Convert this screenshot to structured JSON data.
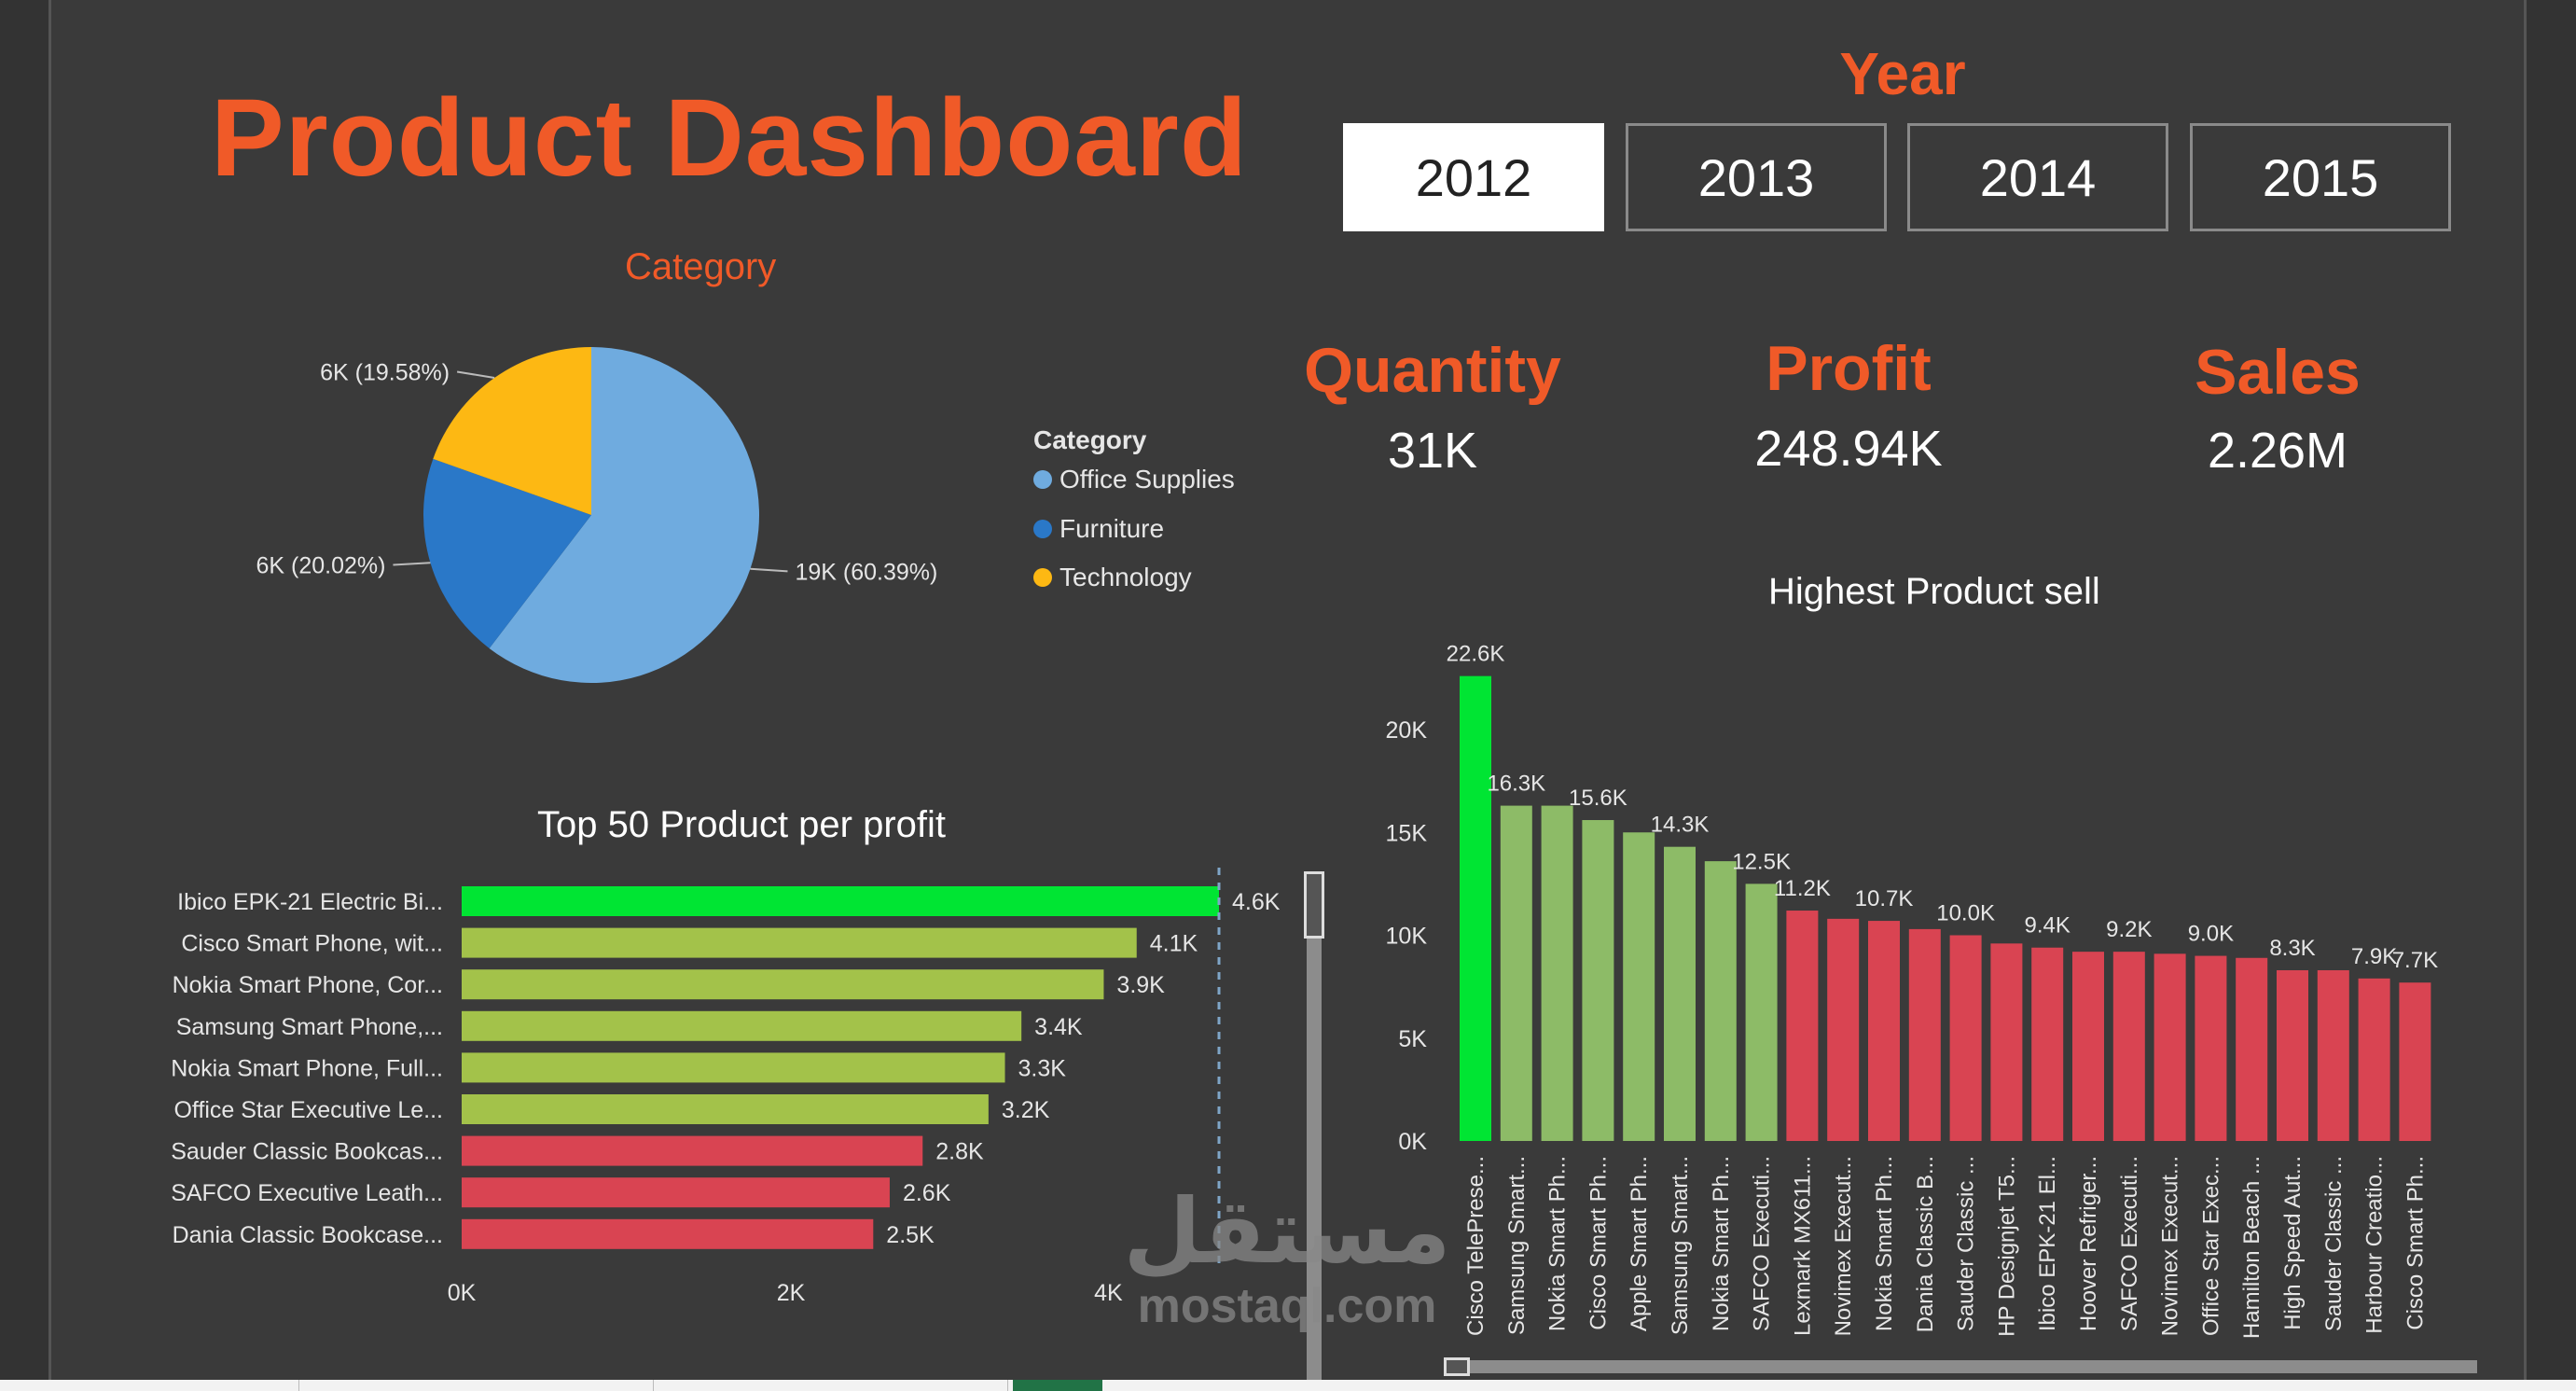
{
  "dashboard": {
    "title": "Product Dashboard",
    "year_label": "Year",
    "years": [
      "2012",
      "2013",
      "2014",
      "2015"
    ],
    "selected_year": "2012"
  },
  "kpis": {
    "quantity": {
      "label": "Quantity",
      "value": "31K"
    },
    "profit": {
      "label": "Profit",
      "value": "248.94K"
    },
    "sales": {
      "label": "Sales",
      "value": "2.26M"
    }
  },
  "category_legend": {
    "title": "Category",
    "items": [
      "Office Supplies",
      "Furniture",
      "Technology"
    ]
  },
  "colors": {
    "accent": "#f05a28",
    "office_supplies": "#6fabdf",
    "furniture": "#2a78c8",
    "technology": "#fdb813",
    "top_green": "#00e533",
    "mid_green": "#a3c24a",
    "low_red": "#d94452",
    "sell_green": "#8dbb67"
  },
  "watermark": {
    "arabic": "مستقل",
    "english": "mostaql.com"
  },
  "chart_data": [
    {
      "type": "pie",
      "title": "Category",
      "categories": [
        "Office Supplies",
        "Furniture",
        "Technology"
      ],
      "values": [
        60.39,
        20.02,
        19.58
      ],
      "labels": [
        "19K (60.39%)",
        "6K (20.02%)",
        "6K (19.58%)"
      ]
    },
    {
      "type": "bar",
      "orientation": "horizontal",
      "title": "Top 50 Product per profit",
      "categories": [
        "Ibico EPK-21 Electric Bi...",
        "Cisco Smart Phone, wit...",
        "Nokia Smart Phone, Cor...",
        "Samsung Smart Phone,...",
        "Nokia Smart Phone, Full...",
        "Office Star Executive Le...",
        "Sauder Classic Bookcas...",
        "SAFCO Executive Leath...",
        "Dania Classic Bookcase..."
      ],
      "values": [
        4.6,
        4.1,
        3.9,
        3.4,
        3.3,
        3.2,
        2.8,
        2.6,
        2.5
      ],
      "value_labels": [
        "4.6K",
        "4.1K",
        "3.9K",
        "3.4K",
        "3.3K",
        "3.2K",
        "2.8K",
        "2.6K",
        "2.5K"
      ],
      "tiers": [
        "top",
        "mid",
        "mid",
        "mid",
        "mid",
        "mid",
        "low",
        "low",
        "low"
      ],
      "x_ticks": [
        "0K",
        "2K",
        "4K"
      ],
      "xlim": [
        0,
        4.6
      ],
      "unit": "K"
    },
    {
      "type": "bar",
      "orientation": "vertical",
      "title": "Highest Product sell",
      "categories": [
        "Cisco TelePrese...",
        "Samsung Smart...",
        "Nokia Smart Ph...",
        "Cisco Smart Ph...",
        "Apple Smart Ph...",
        "Samsung Smart...",
        "Nokia Smart Ph...",
        "SAFCO Executi...",
        "Lexmark MX611...",
        "Novimex Execut...",
        "Nokia Smart Ph...",
        "Dania Classic B...",
        "Sauder Classic ...",
        "HP Designjet T5...",
        "Ibico EPK-21 El...",
        "Hoover Refriger...",
        "SAFCO Executi...",
        "Novimex Execut...",
        "Office Star Exec...",
        "Hamilton Beach ...",
        "High Speed Aut...",
        "Sauder Classic ...",
        "Harbour Creatio...",
        "Cisco Smart Ph..."
      ],
      "values": [
        22.6,
        16.3,
        16.3,
        15.6,
        15.0,
        14.3,
        13.6,
        12.5,
        11.2,
        10.8,
        10.7,
        10.3,
        10.0,
        9.6,
        9.4,
        9.2,
        9.2,
        9.1,
        9.0,
        8.9,
        8.3,
        8.3,
        7.9,
        7.7
      ],
      "value_labels": [
        "22.6K",
        "16.3K",
        "",
        "15.6K",
        "",
        "14.3K",
        "",
        "12.5K",
        "11.2K",
        "",
        "10.7K",
        "",
        "10.0K",
        "",
        "9.4K",
        "",
        "9.2K",
        "",
        "9.0K",
        "",
        "8.3K",
        "",
        "7.9K",
        "7.7K"
      ],
      "tiers": [
        "top",
        "mid",
        "mid",
        "mid",
        "mid",
        "mid",
        "mid",
        "mid",
        "low",
        "low",
        "low",
        "low",
        "low",
        "low",
        "low",
        "low",
        "low",
        "low",
        "low",
        "low",
        "low",
        "low",
        "low",
        "low"
      ],
      "y_ticks": [
        0,
        5,
        10,
        15,
        20
      ],
      "y_tick_labels": [
        "0K",
        "5K",
        "10K",
        "15K",
        "20K"
      ],
      "ylim": [
        0,
        22.6
      ],
      "unit": "K"
    }
  ]
}
